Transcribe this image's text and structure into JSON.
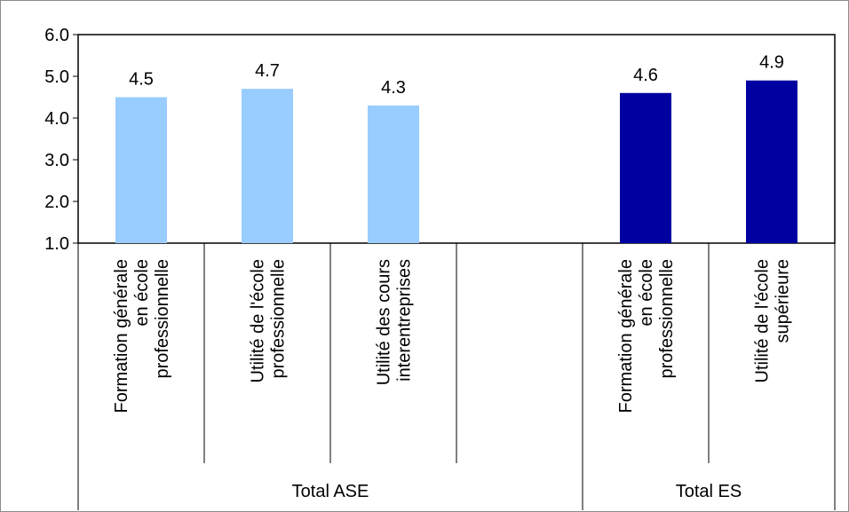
{
  "chart_data": {
    "type": "bar",
    "ylim": [
      1.0,
      6.0
    ],
    "yticks": [
      "1.0",
      "2.0",
      "3.0",
      "4.0",
      "5.0",
      "6.0"
    ],
    "grid": false,
    "groups": [
      {
        "label": "Total ASE",
        "color": "#99ccff",
        "categories": [
          [
            "Formation générale",
            "en école",
            "professionnelle"
          ],
          [
            "Utilité de l'école",
            "professionnelle"
          ],
          [
            "Utilité des cours",
            "interentreprises"
          ],
          []
        ],
        "values": [
          4.5,
          4.7,
          4.3,
          null
        ],
        "data_labels": [
          "4.5",
          "4.7",
          "4.3",
          ""
        ]
      },
      {
        "label": "Total ES",
        "color": "#0000a0",
        "categories": [
          [
            "Formation générale",
            "en école",
            "professionnelle"
          ],
          [
            "Utilité de l'école",
            "supérieure"
          ]
        ],
        "values": [
          4.6,
          4.9
        ],
        "data_labels": [
          "4.6",
          "4.9"
        ]
      }
    ]
  }
}
